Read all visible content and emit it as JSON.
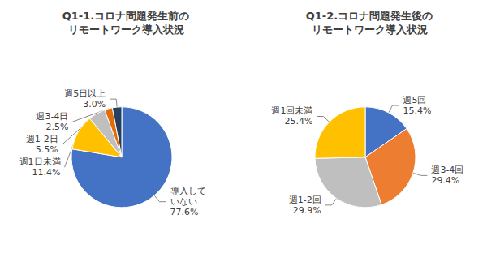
{
  "chart_data": [
    {
      "type": "pie",
      "title": "Q1-1.コロナ問題発生前の\nリモートワーク導入状況",
      "categories": [
        "導入して\nいない",
        "週1日未満",
        "週1-2日",
        "週3-4日",
        "週5日以上"
      ],
      "values": [
        77.6,
        11.4,
        5.5,
        2.5,
        3.0
      ],
      "value_labels": [
        "77.6%",
        "11.4%",
        "5.5%",
        "2.5%",
        "3.0%"
      ],
      "colors": [
        "#4472C4",
        "#FFC000",
        "#BFBFBF",
        "#E36C0A",
        "#243F60"
      ],
      "data_labels": true
    },
    {
      "type": "pie",
      "title": "Q1-2.コロナ問題発生後の\nリモートワーク導入状況",
      "categories": [
        "週5回",
        "週3-4回",
        "週1-2回",
        "週1回未満"
      ],
      "values": [
        15.4,
        29.4,
        29.9,
        25.4
      ],
      "value_labels": [
        "15.4%",
        "29.4%",
        "29.9%",
        "25.4%"
      ],
      "colors": [
        "#4472C4",
        "#ED7D31",
        "#BFBFBF",
        "#FFC000"
      ],
      "data_labels": true
    }
  ]
}
